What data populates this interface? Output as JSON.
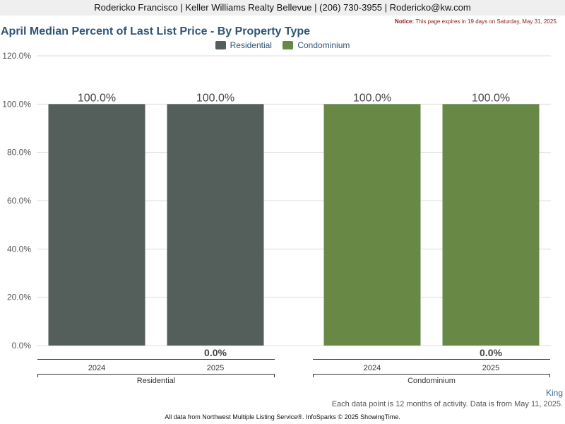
{
  "header": {
    "agent_line": "Rodericko Francisco | Keller Williams Realty Bellevue | (206) 730-3955 | Rodericko@kw.com"
  },
  "notice": {
    "label": "Notice:",
    "text": "This page expires in 19 days on Saturday, May 31, 2025."
  },
  "colors": {
    "residential": "#545e5a",
    "condominium": "#688845",
    "gridline": "#dcdcdc",
    "axis_text": "#555555"
  },
  "chart_data": {
    "type": "bar",
    "title": "April Median Percent of Last List Price - By Property Type",
    "ylim": [
      0,
      120
    ],
    "yticks": [
      "0.0%",
      "20.0%",
      "40.0%",
      "60.0%",
      "80.0%",
      "100.0%",
      "120.0%"
    ],
    "ytick_values": [
      0,
      20,
      40,
      60,
      80,
      100,
      120
    ],
    "grid": true,
    "legend_position": "top-center",
    "series": [
      {
        "name": "Residential",
        "color_key": "residential"
      },
      {
        "name": "Condominium",
        "color_key": "condominium"
      }
    ],
    "groups": [
      {
        "name": "Residential",
        "series_index": 0,
        "bars": [
          {
            "year": "2024",
            "value": 100.0,
            "label": "100.0%"
          },
          {
            "year": "2025",
            "value": 100.0,
            "label": "100.0%"
          }
        ],
        "change_label": "0.0%"
      },
      {
        "name": "Condominium",
        "series_index": 1,
        "bars": [
          {
            "year": "2024",
            "value": 100.0,
            "label": "100.0%"
          },
          {
            "year": "2025",
            "value": 100.0,
            "label": "100.0%"
          }
        ],
        "change_label": "0.0%"
      }
    ]
  },
  "footer": {
    "region": "King",
    "note": "Each data point is 12 months of activity. Data is from May 11, 2025.",
    "credit": "All data from Northwest Multiple Listing Service®. InfoSparks © 2025 ShowingTime."
  }
}
